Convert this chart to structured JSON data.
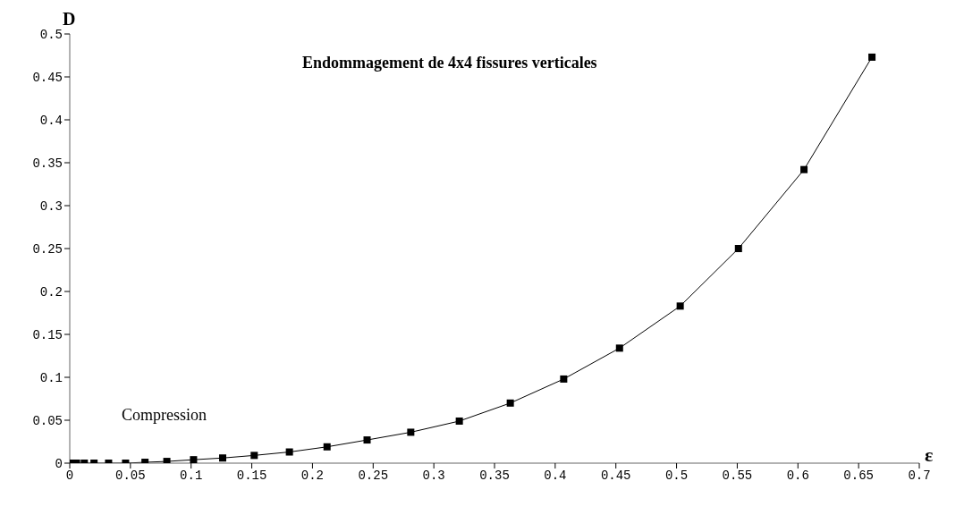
{
  "chart_data": {
    "type": "line",
    "title": "Endommagement de 4x4 fissures verticales",
    "xlabel": "ε",
    "ylabel": "D",
    "annotations": [
      "Compression"
    ],
    "x": [
      0,
      0.0056,
      0.012,
      0.02,
      0.032,
      0.046,
      0.062,
      0.08,
      0.102,
      0.126,
      0.152,
      0.181,
      0.212,
      0.245,
      0.281,
      0.321,
      0.363,
      0.407,
      0.453,
      0.503,
      0.551,
      0.605,
      0.661
    ],
    "series": [
      {
        "color": "#000000",
        "values": [
          0,
          0,
          0,
          0,
          0,
          0,
          0.001,
          0.002,
          0.004,
          0.006,
          0.009,
          0.013,
          0.019,
          0.027,
          0.036,
          0.049,
          0.07,
          0.098,
          0.134,
          0.183,
          0.25,
          0.342,
          0.473
        ]
      }
    ],
    "xlim": [
      0,
      0.7
    ],
    "xticks": [
      0,
      0.05,
      0.1,
      0.15,
      0.2,
      0.25,
      0.3,
      0.35,
      0.4,
      0.45,
      0.5,
      0.55,
      0.6,
      0.65,
      0.7
    ],
    "ylim": [
      0,
      0.5
    ],
    "yticks": [
      0,
      0.05,
      0.1,
      0.15,
      0.2,
      0.25,
      0.3,
      0.35,
      0.4,
      0.45,
      0.5
    ],
    "grid": false,
    "legend": false,
    "marker": "square",
    "line_style": "solid"
  }
}
